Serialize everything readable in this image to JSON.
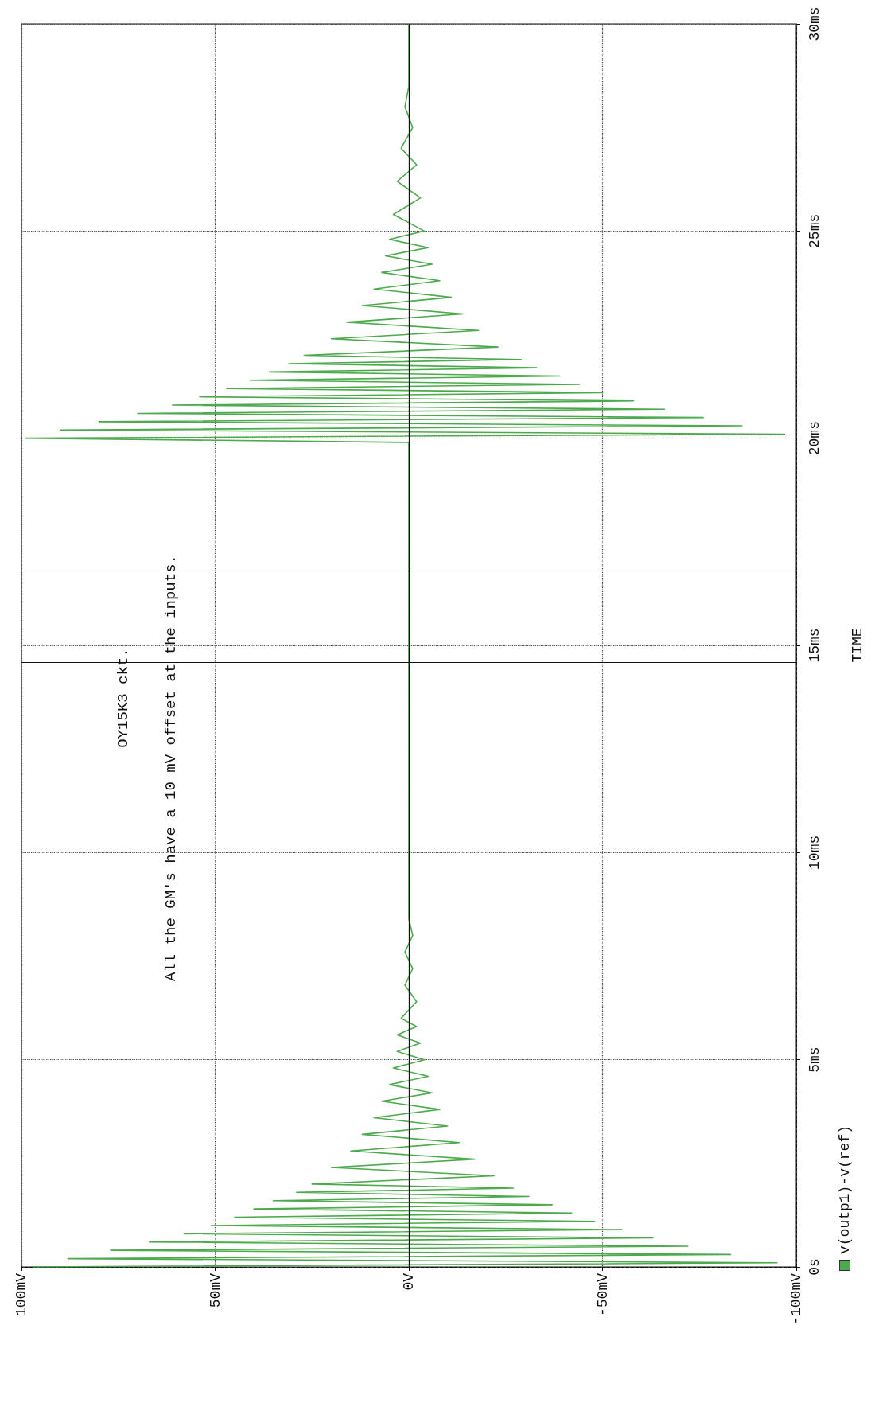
{
  "chart_data": {
    "type": "line",
    "ylabel": "TIME",
    "annotations": [
      "OY15K3 ckt.",
      "All the GM's have a 10 mV offset at the inputs."
    ],
    "series": [
      {
        "name": "v(outp1)-v(ref)",
        "color": "#4caa4c",
        "x": [
          97,
          -95,
          88,
          -83,
          77,
          -72,
          67,
          -63,
          58,
          -55,
          51,
          -48,
          45,
          -42,
          40,
          -37,
          35,
          -31,
          29,
          -27,
          25,
          -22,
          20,
          -17,
          15,
          -13,
          12,
          -10,
          9,
          -8,
          7,
          -6,
          5,
          -5,
          4,
          -4,
          3,
          -3,
          3,
          -2,
          2,
          -2,
          1,
          -1,
          1,
          -1,
          0,
          0,
          0,
          99,
          -97,
          90,
          -86,
          80,
          -76,
          70,
          -66,
          61,
          -58,
          54,
          -50,
          47,
          -44,
          41,
          -39,
          36,
          -33,
          31,
          -29,
          27,
          -23,
          20,
          -18,
          16,
          -14,
          12,
          -11,
          9,
          -8,
          7,
          -6,
          6,
          -5,
          5,
          -4,
          4,
          -3,
          3,
          -2,
          2,
          -1,
          1,
          0,
          0
        ],
        "values": [
          0,
          0.1,
          0.2,
          0.3,
          0.4,
          0.5,
          0.6,
          0.7,
          0.8,
          0.9,
          1.0,
          1.1,
          1.2,
          1.3,
          1.4,
          1.5,
          1.6,
          1.7,
          1.8,
          1.9,
          2.0,
          2.2,
          2.4,
          2.6,
          2.8,
          3.0,
          3.2,
          3.4,
          3.6,
          3.8,
          4.0,
          4.2,
          4.4,
          4.6,
          4.8,
          5.0,
          5.2,
          5.4,
          5.6,
          5.8,
          6.0,
          6.4,
          6.8,
          7.2,
          7.6,
          8.0,
          8.4,
          9.0,
          19.9,
          20.0,
          20.1,
          20.2,
          20.3,
          20.4,
          20.5,
          20.6,
          20.7,
          20.8,
          20.9,
          21.0,
          21.1,
          21.2,
          21.3,
          21.4,
          21.5,
          21.6,
          21.7,
          21.8,
          21.9,
          22.0,
          22.2,
          22.4,
          22.6,
          22.8,
          23.0,
          23.2,
          23.4,
          23.6,
          23.8,
          24.0,
          24.2,
          24.4,
          24.6,
          24.8,
          25.0,
          25.4,
          25.8,
          26.2,
          26.6,
          27.0,
          27.5,
          28.0,
          28.5,
          30
        ]
      }
    ],
    "xlim": [
      100,
      -100
    ],
    "xticks": [
      {
        "value": 100,
        "label": "100mV"
      },
      {
        "value": 50,
        "label": "50mV"
      },
      {
        "value": 0,
        "label": "0V"
      },
      {
        "value": -50,
        "label": "-50mV"
      },
      {
        "value": -100,
        "label": "-100mV"
      }
    ],
    "ylim": [
      0,
      30
    ],
    "yticks": [
      {
        "value": 0,
        "label": "0s"
      },
      {
        "value": 5,
        "label": "5ms"
      },
      {
        "value": 10,
        "label": "10ms"
      },
      {
        "value": 15,
        "label": "15ms"
      },
      {
        "value": 20,
        "label": "20ms"
      },
      {
        "value": 25,
        "label": "25ms"
      },
      {
        "value": 30,
        "label": "30ms"
      }
    ],
    "grid": true,
    "legend": "bottom right",
    "line_style": "solid",
    "ref_lines": [
      {
        "axis": "x",
        "value": 0
      },
      {
        "axis": "y",
        "value": 14.6
      },
      {
        "axis": "y",
        "value": 16.9
      }
    ]
  }
}
